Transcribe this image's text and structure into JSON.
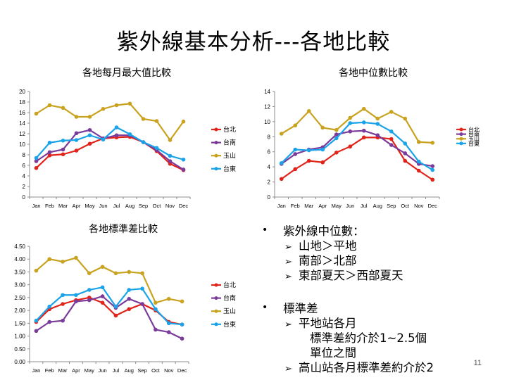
{
  "slide": {
    "title": "紫外線基本分析---各地比較",
    "page_number": "11"
  },
  "bullets": {
    "b1_title": "紫外線中位數：",
    "b1_sub1": "山地＞平地",
    "b1_sub2": "南部＞北部",
    "b1_sub3": "東部夏天＞西部夏天",
    "b2_title": "標準差",
    "b2_sub1": "平地站各月",
    "b2_sub1_cont1": "標準差約介於1~2.5個",
    "b2_sub1_cont2": "單位之間",
    "b2_sub2": "高山站各月標準差約介於2"
  },
  "colors": {
    "台北": "#e2231a",
    "台南": "#7b3b9b",
    "玉山": "#c9a21f",
    "台東": "#1aa3e8",
    "axis": "#8c8c8c"
  },
  "chart_data": [
    {
      "id": "max",
      "type": "line",
      "title": "各地每月最大值比較",
      "categories": [
        "Jan",
        "Feb",
        "Mar",
        "Apr",
        "May",
        "Jun",
        "Jul",
        "Aug",
        "Sep",
        "Oct",
        "Nov",
        "Dec"
      ],
      "ylim": [
        0,
        20
      ],
      "yticks": [
        "0",
        "2",
        "4",
        "6",
        "8",
        "10",
        "12",
        "14",
        "16",
        "18",
        "20"
      ],
      "legend_position": "right",
      "series": [
        {
          "name": "台北",
          "values": [
            5.5,
            7.9,
            8.1,
            8.8,
            10.1,
            11.1,
            11.3,
            11.4,
            10.4,
            8.7,
            6.3,
            5.1
          ]
        },
        {
          "name": "台南",
          "values": [
            6.8,
            8.5,
            9.0,
            12.1,
            12.7,
            11.1,
            11.7,
            11.7,
            10.4,
            8.9,
            6.8,
            5.2
          ]
        },
        {
          "name": "玉山",
          "values": [
            15.8,
            17.4,
            16.9,
            15.2,
            15.2,
            16.7,
            17.4,
            17.7,
            14.8,
            14.4,
            10.8,
            14.3
          ]
        },
        {
          "name": "台東",
          "values": [
            7.4,
            10.3,
            10.7,
            10.8,
            11.7,
            10.9,
            13.2,
            11.9,
            10.4,
            9.3,
            7.8,
            7.1
          ]
        }
      ]
    },
    {
      "id": "median",
      "type": "line",
      "title": "各地中位數比較",
      "categories": [
        "Jan",
        "Feb",
        "Mar",
        "Apr",
        "May",
        "Jun",
        "Jul",
        "Aug",
        "Sep",
        "Oct",
        "Nov",
        "Dec"
      ],
      "ylim": [
        0,
        14
      ],
      "yticks": [
        "0",
        "2",
        "4",
        "6",
        "8",
        "10",
        "12",
        "14"
      ],
      "legend_position": "right",
      "series": [
        {
          "name": "台北",
          "values": [
            2.4,
            3.7,
            4.8,
            4.6,
            5.9,
            6.7,
            7.9,
            7.9,
            7.7,
            4.8,
            3.5,
            2.3
          ]
        },
        {
          "name": "台南",
          "values": [
            4.4,
            5.7,
            6.3,
            6.6,
            8.3,
            8.7,
            8.8,
            8.2,
            6.9,
            5.8,
            4.4,
            4.1
          ]
        },
        {
          "name": "玉山",
          "values": [
            8.4,
            9.5,
            11.4,
            9.2,
            8.9,
            10.5,
            11.7,
            10.4,
            11.3,
            10.4,
            7.3,
            7.2
          ]
        },
        {
          "name": "台東",
          "values": [
            4.5,
            6.3,
            6.2,
            6.3,
            7.8,
            9.8,
            9.9,
            9.7,
            8.7,
            7.1,
            4.7,
            3.6
          ]
        }
      ]
    },
    {
      "id": "std",
      "type": "line",
      "title": "各地標準差比較",
      "categories": [
        "Jan",
        "Feb",
        "Mar",
        "Apr",
        "May",
        "Jun",
        "Jul",
        "Aug",
        "Sep",
        "Oct",
        "Nov",
        "Dec"
      ],
      "ylim": [
        0,
        4.5
      ],
      "yticks": [
        "0.00",
        "0.50",
        "1.00",
        "1.50",
        "2.00",
        "2.50",
        "3.00",
        "3.50",
        "4.00",
        "4.50"
      ],
      "legend_position": "right",
      "series": [
        {
          "name": "台北",
          "values": [
            1.55,
            2.05,
            2.25,
            2.4,
            2.5,
            2.3,
            1.8,
            2.05,
            2.25,
            2.0,
            1.55,
            1.45
          ]
        },
        {
          "name": "台南",
          "values": [
            1.2,
            1.55,
            1.6,
            2.35,
            2.4,
            2.55,
            2.1,
            2.45,
            2.25,
            1.25,
            1.15,
            0.9
          ]
        },
        {
          "name": "玉山",
          "values": [
            3.55,
            4.0,
            3.9,
            4.05,
            3.45,
            3.7,
            3.45,
            3.5,
            3.45,
            2.3,
            2.45,
            2.35
          ]
        },
        {
          "name": "台東",
          "values": [
            1.6,
            2.15,
            2.6,
            2.6,
            2.8,
            2.9,
            2.15,
            2.8,
            2.85,
            2.05,
            1.5,
            1.45
          ]
        }
      ]
    }
  ]
}
